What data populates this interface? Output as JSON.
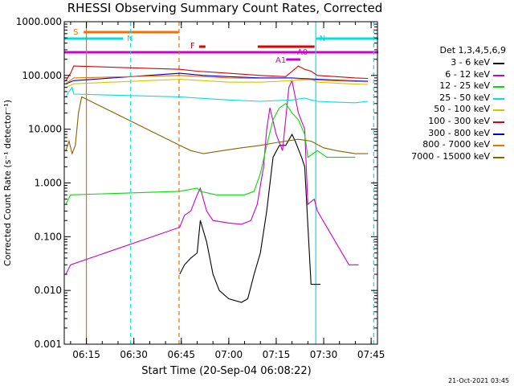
{
  "title": "RHESSI Observing Summary Count Rates, Corrected",
  "footer": "21-Oct-2021 03:45",
  "legend": {
    "header": "Det 1,3,4,5,6,9",
    "items": [
      {
        "label": "3 - 6 keV",
        "color": "#000000"
      },
      {
        "label": "6 - 12 keV",
        "color": "#cc00cc"
      },
      {
        "label": "12 - 25 keV",
        "color": "#00e000"
      },
      {
        "label": "25 - 50 keV",
        "color": "#00e0e0"
      },
      {
        "label": "50 - 100 keV",
        "color": "#e0c000"
      },
      {
        "label": "100 - 300 keV",
        "color": "#e00000"
      },
      {
        "label": "300 - 800 keV",
        "color": "#0000cc"
      },
      {
        "label": "800 - 7000 keV",
        "color": "#f07000"
      },
      {
        "label": "7000 - 15000 keV",
        "color": "#806600"
      }
    ]
  },
  "flags": [
    {
      "label": "S",
      "color": "#f07000",
      "start": "06:14.5",
      "end": "06:44.5"
    },
    {
      "label": "N",
      "color": "#00e0e0",
      "start": "06:08.2",
      "end": "06:27.0"
    },
    {
      "label": "N",
      "color": "#00e0e0",
      "start": "07:28.0",
      "end": "07:48.0"
    },
    {
      "label": "F",
      "color": "#e00000",
      "start": "06:51.0",
      "end": "06:53.0"
    },
    {
      "label": "",
      "color": "#e00000",
      "start": "07:09.5",
      "end": "07:27.5"
    },
    {
      "label": "A0",
      "color": "#cc00cc",
      "start": "06:08.2",
      "end": "07:48.0"
    },
    {
      "label": "A1",
      "color": "#cc00cc",
      "start": "07:18.5",
      "end": "07:23.0"
    }
  ],
  "chart_data": {
    "type": "line",
    "title": "RHESSI Observing Summary Count Rates, Corrected",
    "xlabel": "Start Time (20-Sep-04 06:08:22)",
    "ylabel": "Corrected Count Rate (s⁻¹ detector⁻¹)",
    "x_unit": "minutes after 06:08:22",
    "xlim": [
      0,
      99
    ],
    "x_ticks": [
      {
        "x": 7,
        "label": "06:15"
      },
      {
        "x": 22,
        "label": "06:30"
      },
      {
        "x": 37,
        "label": "06:45"
      },
      {
        "x": 52,
        "label": "07:00"
      },
      {
        "x": 67,
        "label": "07:15"
      },
      {
        "x": 82,
        "label": "07:30"
      },
      {
        "x": 97,
        "label": "07:45"
      }
    ],
    "yscale": "log",
    "ylim": [
      0.001,
      1000
    ],
    "y_ticks": [
      "0.001",
      "0.010",
      "0.100",
      "1.000",
      "10.000",
      "100.000",
      "1000.000"
    ],
    "vertical_lines": [
      {
        "x": 7.0,
        "color": "#f07000",
        "style": "solid"
      },
      {
        "x": 21.0,
        "color": "#00e0e0",
        "style": "dashed"
      },
      {
        "x": 36.3,
        "color": "#f07000",
        "style": "dashed"
      },
      {
        "x": 79.5,
        "color": "#00e0e0",
        "style": "solid"
      },
      {
        "x": 97.8,
        "color": "#00e0e0",
        "style": "dashed"
      }
    ],
    "series": [
      {
        "name": "3 - 6 keV",
        "color": "#000000",
        "points": [
          [
            36.5,
            0.02
          ],
          [
            38,
            0.03
          ],
          [
            40,
            0.04
          ],
          [
            42,
            0.05
          ],
          [
            43,
            0.2
          ],
          [
            45,
            0.08
          ],
          [
            47,
            0.02
          ],
          [
            49,
            0.01
          ],
          [
            52,
            0.007
          ],
          [
            56,
            0.006
          ],
          [
            58,
            0.007
          ],
          [
            60,
            0.02
          ],
          [
            62,
            0.05
          ],
          [
            64,
            0.3
          ],
          [
            66,
            3
          ],
          [
            68,
            5
          ],
          [
            70,
            5
          ],
          [
            72,
            8
          ],
          [
            73,
            6
          ],
          [
            75,
            3
          ],
          [
            76,
            2
          ],
          [
            78,
            0.013
          ],
          [
            81,
            0.013
          ]
        ]
      },
      {
        "name": "6 - 12 keV",
        "color": "#cc00cc",
        "points": [
          [
            0.5,
            0.02
          ],
          [
            2,
            0.03
          ],
          [
            36.5,
            0.15
          ],
          [
            38,
            0.25
          ],
          [
            40,
            0.3
          ],
          [
            42,
            0.6
          ],
          [
            43,
            0.8
          ],
          [
            45,
            0.3
          ],
          [
            47,
            0.2
          ],
          [
            52,
            0.18
          ],
          [
            56,
            0.17
          ],
          [
            59,
            0.2
          ],
          [
            61,
            0.4
          ],
          [
            63,
            2
          ],
          [
            64,
            10
          ],
          [
            65,
            25
          ],
          [
            67,
            8
          ],
          [
            69,
            4
          ],
          [
            71,
            60
          ],
          [
            72,
            80
          ],
          [
            74,
            20
          ],
          [
            76,
            10
          ],
          [
            77,
            0.4
          ],
          [
            79,
            0.5
          ],
          [
            80,
            0.3
          ],
          [
            90,
            0.03
          ],
          [
            93,
            0.03
          ]
        ]
      },
      {
        "name": "12 - 25 keV",
        "color": "#00e000",
        "points": [
          [
            0.5,
            0.4
          ],
          [
            2,
            0.6
          ],
          [
            36.5,
            0.7
          ],
          [
            42,
            0.8
          ],
          [
            43,
            0.7
          ],
          [
            48,
            0.6
          ],
          [
            52,
            0.6
          ],
          [
            57,
            0.6
          ],
          [
            60,
            0.7
          ],
          [
            62,
            1.5
          ],
          [
            64,
            5
          ],
          [
            66,
            15
          ],
          [
            68,
            25
          ],
          [
            70,
            30
          ],
          [
            72,
            20
          ],
          [
            74,
            15
          ],
          [
            76,
            8
          ],
          [
            77,
            3
          ],
          [
            80,
            4
          ],
          [
            83,
            3
          ],
          [
            88,
            3
          ],
          [
            92,
            3
          ]
        ]
      },
      {
        "name": "25 - 50 keV",
        "color": "#00e0e0",
        "points": [
          [
            0.5,
            40
          ],
          [
            1.5,
            50
          ],
          [
            2.5,
            60
          ],
          [
            3,
            45
          ],
          [
            36.5,
            40
          ],
          [
            42,
            38
          ],
          [
            52,
            35
          ],
          [
            62,
            33
          ],
          [
            72,
            35
          ],
          [
            76,
            38
          ],
          [
            78,
            35
          ],
          [
            80,
            33
          ],
          [
            85,
            32
          ],
          [
            92,
            31
          ],
          [
            96,
            33
          ]
        ]
      },
      {
        "name": "50 - 100 keV",
        "color": "#e0c000",
        "points": [
          [
            0.5,
            60
          ],
          [
            3,
            70
          ],
          [
            36.5,
            85
          ],
          [
            44,
            80
          ],
          [
            52,
            75
          ],
          [
            62,
            75
          ],
          [
            72,
            80
          ],
          [
            78,
            85
          ],
          [
            80,
            75
          ],
          [
            90,
            70
          ],
          [
            96,
            68
          ]
        ]
      },
      {
        "name": "100 - 300 keV",
        "color": "#e00000",
        "points": [
          [
            0.5,
            80
          ],
          [
            2,
            110
          ],
          [
            3,
            150
          ],
          [
            36.5,
            130
          ],
          [
            42,
            120
          ],
          [
            52,
            110
          ],
          [
            62,
            100
          ],
          [
            70,
            95
          ],
          [
            74,
            150
          ],
          [
            76,
            130
          ],
          [
            78,
            120
          ],
          [
            80,
            100
          ],
          [
            86,
            95
          ],
          [
            92,
            90
          ],
          [
            96,
            88
          ]
        ]
      },
      {
        "name": "300 - 800 keV",
        "color": "#0000cc",
        "points": [
          [
            0.5,
            70
          ],
          [
            3,
            80
          ],
          [
            36.5,
            110
          ],
          [
            44,
            100
          ],
          [
            52,
            95
          ],
          [
            62,
            90
          ],
          [
            72,
            90
          ],
          [
            80,
            85
          ],
          [
            90,
            80
          ],
          [
            96,
            78
          ]
        ]
      },
      {
        "name": "800 - 7000 keV",
        "color": "#f07000",
        "points": [
          [
            0.5,
            70
          ],
          [
            3,
            90
          ],
          [
            36.5,
            100
          ],
          [
            44,
            95
          ],
          [
            52,
            90
          ],
          [
            62,
            88
          ],
          [
            72,
            88
          ],
          [
            80,
            82
          ],
          [
            90,
            78
          ],
          [
            96,
            76
          ]
        ]
      },
      {
        "name": "7000 - 15000 keV",
        "color": "#806600",
        "points": [
          [
            0.5,
            4
          ],
          [
            1.5,
            6
          ],
          [
            2.5,
            3.5
          ],
          [
            3.5,
            5
          ],
          [
            4.5,
            20
          ],
          [
            5.5,
            40
          ],
          [
            36.5,
            5
          ],
          [
            40,
            4
          ],
          [
            44,
            3.5
          ],
          [
            50,
            4
          ],
          [
            56,
            4.5
          ],
          [
            62,
            5
          ],
          [
            66,
            5.5
          ],
          [
            70,
            6
          ],
          [
            74,
            6.5
          ],
          [
            78,
            6
          ],
          [
            82,
            4.5
          ],
          [
            86,
            4
          ],
          [
            92,
            3.5
          ],
          [
            96,
            3.5
          ]
        ]
      }
    ]
  }
}
